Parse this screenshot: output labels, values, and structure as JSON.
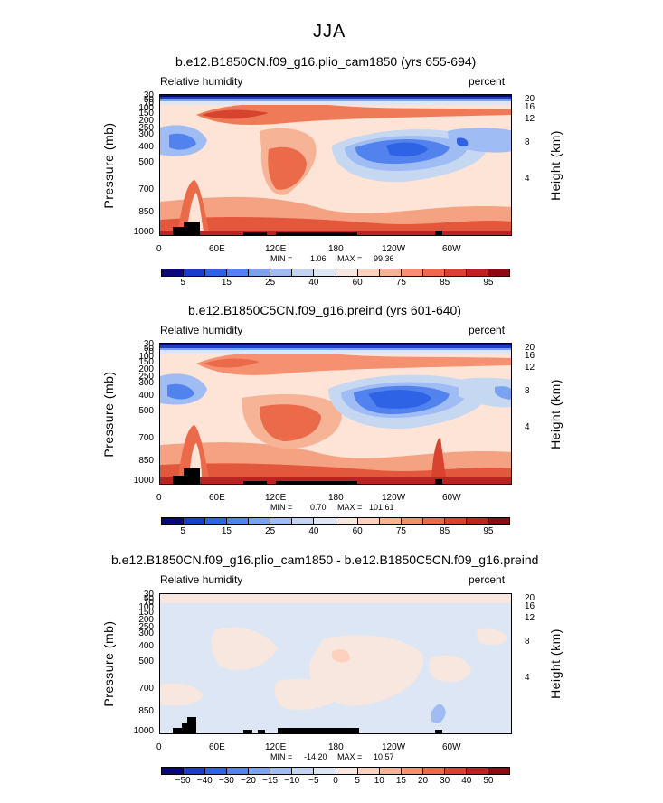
{
  "figure_title": "JJA",
  "chart_data": [
    {
      "type": "heatmap",
      "title": "b.e12.B1850CN.f09_g16.plio_cam1850 (yrs 655-694)",
      "left_label": "Relative humidity",
      "right_label": "percent",
      "ylabel": "Pressure (mb)",
      "ylabel_right": "Height (km)",
      "x_tick_labels": [
        "0",
        "60E",
        "120E",
        "180",
        "120W",
        "60W"
      ],
      "y_tick_labels": [
        "30",
        "50",
        "70",
        "100",
        "150",
        "200",
        "250",
        "300",
        "400",
        "500",
        "700",
        "850",
        "1000"
      ],
      "height_tick_labels": [
        "20",
        "16",
        "12",
        "8",
        "4"
      ],
      "min_label": "MIN =",
      "min": "1.06",
      "max_label": "MAX =",
      "max": "99.36",
      "colorbar_labels": [
        "5",
        "15",
        "25",
        "40",
        "60",
        "75",
        "85",
        "95"
      ],
      "colorbar_colors": [
        "#08087c",
        "#1a3fc6",
        "#2e63e6",
        "#5282ee",
        "#7aa2f2",
        "#9fbdf4",
        "#c1d4f3",
        "#dde6f4",
        "#f7e7de",
        "#fcd1bd",
        "#f9b394",
        "#f5906c",
        "#ea6a4a",
        "#d8432f",
        "#bc2220",
        "#8c0a12"
      ]
    },
    {
      "type": "heatmap",
      "title": "b.e12.B1850C5CN.f09_g16.preind (yrs 601-640)",
      "left_label": "Relative humidity",
      "right_label": "percent",
      "ylabel": "Pressure (mb)",
      "ylabel_right": "Height (km)",
      "x_tick_labels": [
        "0",
        "60E",
        "120E",
        "180",
        "120W",
        "60W"
      ],
      "y_tick_labels": [
        "30",
        "50",
        "70",
        "100",
        "150",
        "200",
        "250",
        "300",
        "400",
        "500",
        "700",
        "850",
        "1000"
      ],
      "height_tick_labels": [
        "20",
        "16",
        "12",
        "8",
        "4"
      ],
      "min_label": "MIN =",
      "min": "0.70",
      "max_label": "MAX =",
      "max": "101.61",
      "colorbar_labels": [
        "5",
        "15",
        "25",
        "40",
        "60",
        "75",
        "85",
        "95"
      ],
      "colorbar_colors": [
        "#08087c",
        "#1a3fc6",
        "#2e63e6",
        "#5282ee",
        "#7aa2f2",
        "#9fbdf4",
        "#c1d4f3",
        "#dde6f4",
        "#f7e7de",
        "#fcd1bd",
        "#f9b394",
        "#f5906c",
        "#ea6a4a",
        "#d8432f",
        "#bc2220",
        "#8c0a12"
      ]
    },
    {
      "type": "heatmap",
      "title": "b.e12.B1850CN.f09_g16.plio_cam1850 - b.e12.B1850C5CN.f09_g16.preind",
      "left_label": "Relative humidity",
      "right_label": "percent",
      "ylabel": "Pressure (mb)",
      "ylabel_right": "Height (km)",
      "x_tick_labels": [
        "0",
        "60E",
        "120E",
        "180",
        "120W",
        "60W"
      ],
      "y_tick_labels": [
        "30",
        "50",
        "70",
        "100",
        "150",
        "200",
        "250",
        "300",
        "400",
        "500",
        "700",
        "850",
        "1000"
      ],
      "height_tick_labels": [
        "20",
        "16",
        "12",
        "8",
        "4"
      ],
      "min_label": "MIN =",
      "min": "-14.20",
      "max_label": "MAX =",
      "max": "10.57",
      "colorbar_labels": [
        "−50",
        "−40",
        "−30",
        "−20",
        "−15",
        "−10",
        "−5",
        "0",
        "5",
        "10",
        "15",
        "20",
        "30",
        "40",
        "50"
      ],
      "colorbar_colors": [
        "#08087c",
        "#1a3fc6",
        "#2e63e6",
        "#5282ee",
        "#7aa2f2",
        "#9fbdf4",
        "#c1d4f3",
        "#dde6f4",
        "#f7e7de",
        "#fcd1bd",
        "#f9b394",
        "#f5906c",
        "#ea6a4a",
        "#d8432f",
        "#bc2220",
        "#8c0a12"
      ]
    }
  ]
}
